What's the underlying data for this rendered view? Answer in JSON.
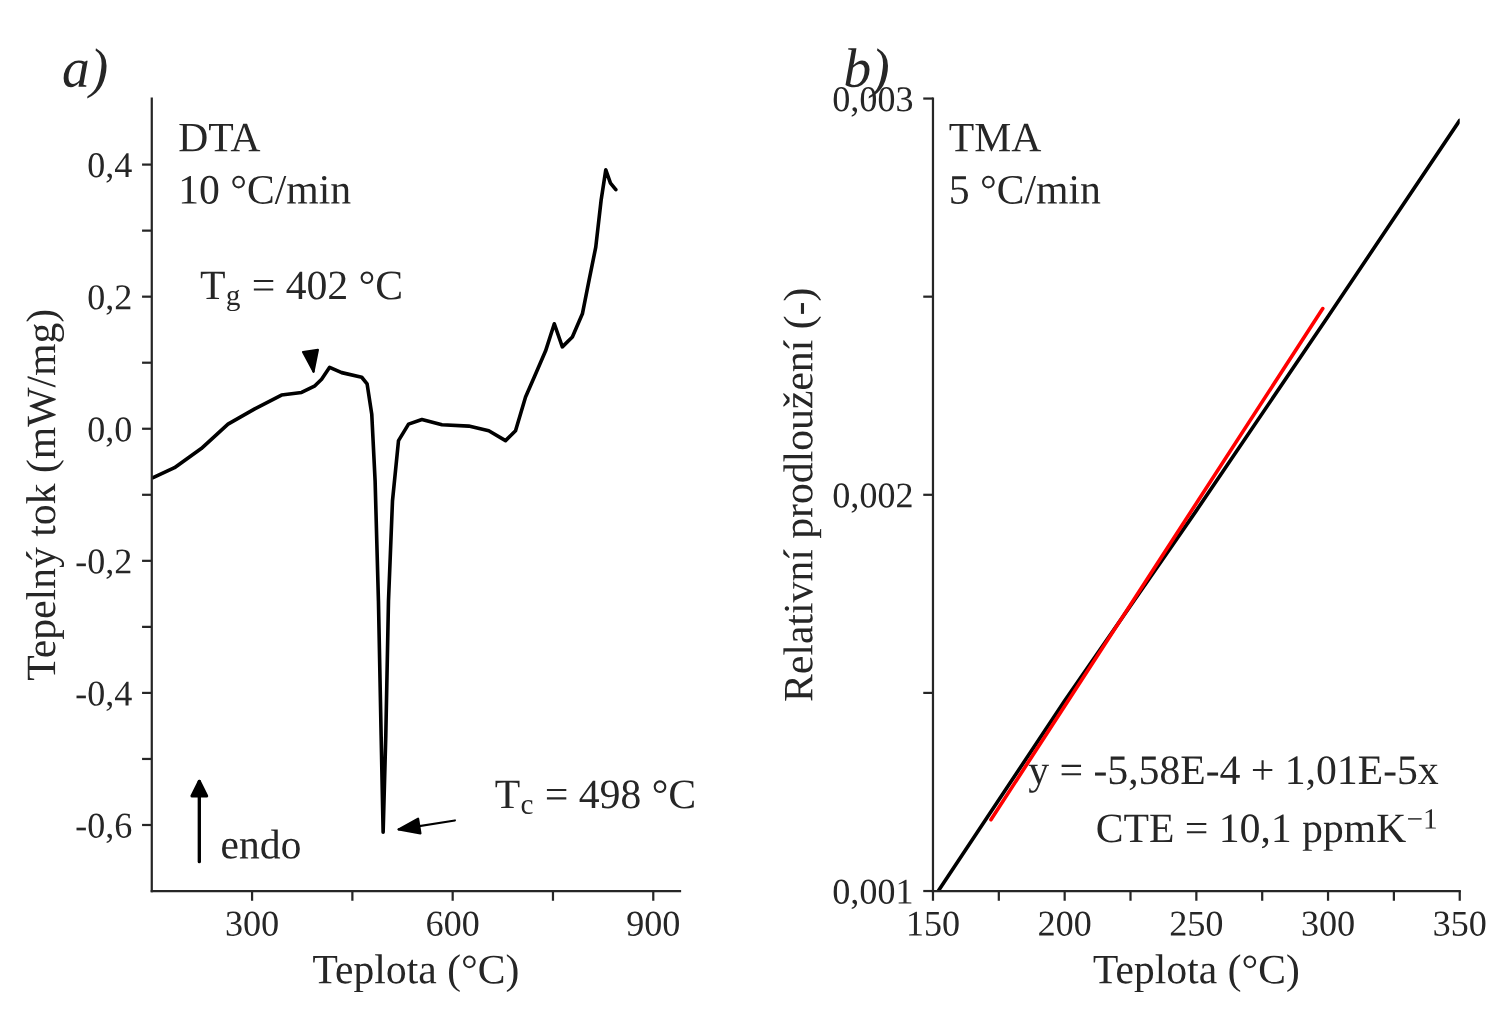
{
  "chart_data": [
    {
      "type": "line",
      "title": "a)",
      "xlabel": "Teplota (°C)",
      "ylabel": "Tepelný tok (mW/mg)",
      "series": [
        {
          "color": "#000000",
          "x": [
            152,
            184,
            224,
            264,
            304,
            344,
            374,
            394,
            404,
            416,
            434,
            464,
            472,
            479,
            484,
            489,
            493,
            496,
            500,
            504,
            510,
            519,
            534,
            554,
            584,
            624,
            654,
            679,
            694,
            709,
            724,
            739,
            752,
            764,
            779,
            794,
            804,
            814,
            822,
            829,
            836,
            844
          ],
          "values": [
            -0.074,
            -0.059,
            -0.03,
            0.007,
            0.03,
            0.051,
            0.055,
            0.065,
            0.075,
            0.093,
            0.085,
            0.078,
            0.068,
            0.022,
            -0.079,
            -0.261,
            -0.464,
            -0.611,
            -0.464,
            -0.261,
            -0.109,
            -0.018,
            0.007,
            0.014,
            0.006,
            0.004,
            -0.003,
            -0.018,
            -0.003,
            0.048,
            0.083,
            0.118,
            0.159,
            0.124,
            0.139,
            0.174,
            0.225,
            0.275,
            0.346,
            0.392,
            0.372,
            0.362
          ]
        }
      ],
      "xlim": [
        150,
        940
      ],
      "ylim": [
        -0.7,
        0.5
      ],
      "xticks": [
        {
          "value": 300,
          "label": "300"
        },
        {
          "value": 450,
          "label": null
        },
        {
          "value": 600,
          "label": "600"
        },
        {
          "value": 750,
          "label": null
        },
        {
          "value": 900,
          "label": "900"
        }
      ],
      "yticks": [
        {
          "value": -0.6,
          "label": "-0,6"
        },
        {
          "value": -0.5,
          "label": null
        },
        {
          "value": -0.4,
          "label": "-0,4"
        },
        {
          "value": -0.3,
          "label": null
        },
        {
          "value": -0.2,
          "label": "-0,2"
        },
        {
          "value": -0.1,
          "label": null
        },
        {
          "value": 0.0,
          "label": "0,0"
        },
        {
          "value": 0.1,
          "label": null
        },
        {
          "value": 0.2,
          "label": "0,2"
        },
        {
          "value": 0.3,
          "label": null
        },
        {
          "value": 0.4,
          "label": "0,4"
        }
      ],
      "annotations": [
        "DTA\n10 °C/min",
        {
          "text": "T$_{g}$ = 402 °C",
          "x": 395,
          "y": 0.065
        },
        {
          "text": "T$_{c}$ = 498 °C",
          "x": 498,
          "y": -0.61
        },
        "endo"
      ]
    },
    {
      "type": "line",
      "title": "b)",
      "xlabel": "Teplota (°C)",
      "ylabel": "Relativní prodloužení (-)",
      "series": [
        {
          "color": "#000000",
          "x": [
            152,
            200,
            250,
            300,
            350
          ],
          "values": [
            0.001,
            0.00148,
            0.00196,
            0.00245,
            0.002945
          ]
        },
        {
          "color": "#ff0000",
          "x": [
            172,
            298
          ],
          "values": [
            0.00118,
            0.00247
          ]
        }
      ],
      "xlim": [
        150,
        350
      ],
      "ylim": [
        0.001,
        0.003
      ],
      "xticks": [
        {
          "value": 150,
          "label": "150"
        },
        {
          "value": 175,
          "label": null
        },
        {
          "value": 200,
          "label": "200"
        },
        {
          "value": 225,
          "label": null
        },
        {
          "value": 250,
          "label": "250"
        },
        {
          "value": 275,
          "label": null
        },
        {
          "value": 300,
          "label": "300"
        },
        {
          "value": 325,
          "label": null
        },
        {
          "value": 350,
          "label": "350"
        }
      ],
      "yticks": [
        {
          "value": 0.001,
          "label": "0,001"
        },
        {
          "value": 0.0015,
          "label": null
        },
        {
          "value": 0.002,
          "label": "0,002"
        },
        {
          "value": 0.0025,
          "label": null
        },
        {
          "value": 0.003,
          "label": "0,003"
        }
      ],
      "annotations": [
        "TMA\n5 °C/min",
        "y = -5,58E-4 + 1,01E-5x\nCTE = 10,1 ppmK$^{−1}$"
      ]
    }
  ]
}
